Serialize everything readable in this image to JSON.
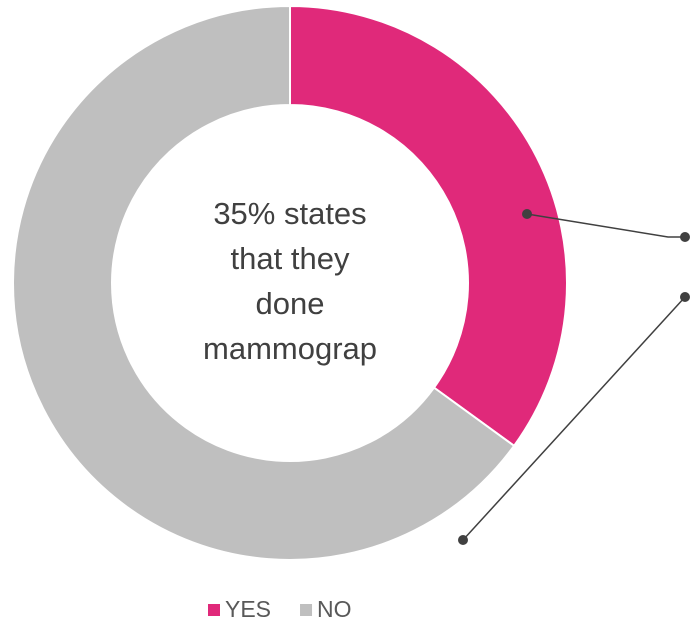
{
  "chart_data": {
    "type": "donut",
    "categories": [
      "YES",
      "NO"
    ],
    "values": [
      35,
      65
    ],
    "colors": [
      "#e0297a",
      "#bfbfbf"
    ],
    "center_text": [
      "35% states",
      "that they",
      "done",
      "mammograp"
    ],
    "legend": "bottom"
  }
}
